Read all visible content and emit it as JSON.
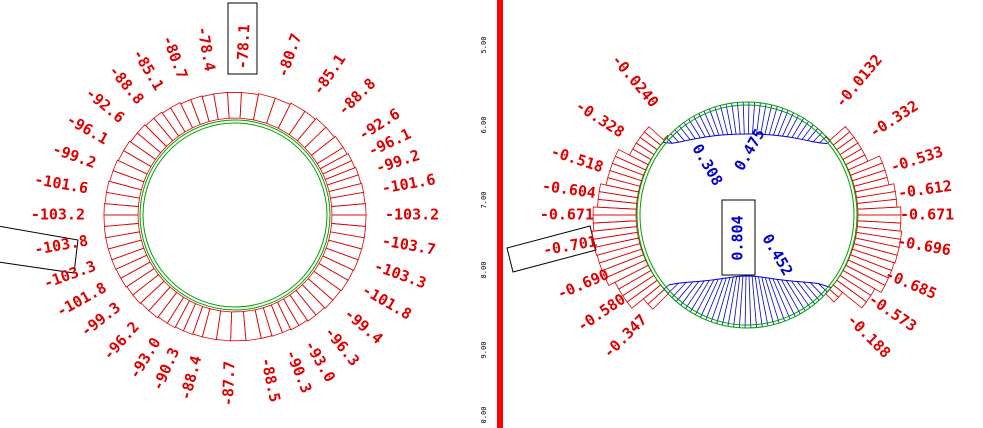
{
  "left_ring": {
    "labels": [
      "-78.1",
      "-80.7",
      "-85.1",
      "-88.8",
      "-92.6",
      "-96.1",
      "-99.2",
      "-101.6",
      "-103.2",
      "-103.7",
      "-103.3",
      "-101.8",
      "-99.4",
      "-96.3",
      "-93.0",
      "-90.3",
      "-88.5",
      "-87.7",
      "-88.4",
      "-90.3",
      "-93.0",
      "-96.2",
      "-99.3",
      "-101.8",
      "-103.3",
      "-103.8",
      "-103.2",
      "-101.6",
      "-99.2",
      "-96.1",
      "-92.6",
      "-88.8",
      "-85.1",
      "-80.7",
      "-78.4"
    ]
  },
  "axis": {
    "ticks": [
      "5.00",
      "6.00",
      "7.00",
      "8.00",
      "9.00",
      "0.00"
    ]
  },
  "right_ring": {
    "outer_labels": [
      "-0.0132",
      "-0.332",
      "-0.533",
      "-0.612",
      "-0.671",
      "-0.696",
      "-0.685",
      "-0.573",
      "-0.188",
      "-0.347",
      "-0.580",
      "-0.690",
      "-0.701",
      "-0.671",
      "-0.604",
      "-0.518",
      "-0.328",
      "-0.0240"
    ],
    "inner_labels": [
      "0.308",
      "0.475",
      "0.804",
      "0.452"
    ]
  }
}
